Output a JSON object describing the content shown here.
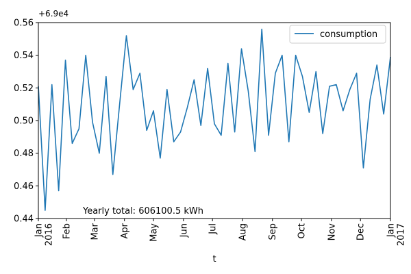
{
  "chart_data": {
    "type": "line",
    "xlabel": "t",
    "ylabel": "",
    "y_offset_label": "+6.9e4",
    "ylim": [
      0.44,
      0.56
    ],
    "xlim": [
      "2016-01-03",
      "2017-01-01"
    ],
    "yticks": [
      0.44,
      0.46,
      0.48,
      0.5,
      0.52,
      0.54,
      0.56
    ],
    "ytick_labels": [
      "0.44",
      "0.46",
      "0.48",
      "0.50",
      "0.52",
      "0.54",
      "0.56"
    ],
    "xticks": [
      {
        "date": "2016-01-03",
        "label": "Jan",
        "sublabel": "2016"
      },
      {
        "date": "2016-02-01",
        "label": "Feb",
        "sublabel": ""
      },
      {
        "date": "2016-03-01",
        "label": "Mar",
        "sublabel": ""
      },
      {
        "date": "2016-04-01",
        "label": "Apr",
        "sublabel": ""
      },
      {
        "date": "2016-05-01",
        "label": "May",
        "sublabel": ""
      },
      {
        "date": "2016-06-01",
        "label": "Jun",
        "sublabel": ""
      },
      {
        "date": "2016-07-01",
        "label": "Jul",
        "sublabel": ""
      },
      {
        "date": "2016-08-01",
        "label": "Aug",
        "sublabel": ""
      },
      {
        "date": "2016-09-01",
        "label": "Sep",
        "sublabel": ""
      },
      {
        "date": "2016-10-01",
        "label": "Oct",
        "sublabel": ""
      },
      {
        "date": "2016-11-01",
        "label": "Nov",
        "sublabel": ""
      },
      {
        "date": "2016-12-01",
        "label": "Dec",
        "sublabel": ""
      },
      {
        "date": "2017-01-01",
        "label": "Jan",
        "sublabel": "2017"
      }
    ],
    "legend_position": "top-right",
    "grid": false,
    "annotation": "Yearly total: 606100.5 kWh",
    "series": [
      {
        "name": "consumption",
        "color": "#1f77b4",
        "x": [
          "2016-01-03",
          "2016-01-10",
          "2016-01-17",
          "2016-01-24",
          "2016-01-31",
          "2016-02-07",
          "2016-02-14",
          "2016-02-21",
          "2016-02-28",
          "2016-03-06",
          "2016-03-13",
          "2016-03-20",
          "2016-03-27",
          "2016-04-03",
          "2016-04-10",
          "2016-04-17",
          "2016-04-24",
          "2016-05-01",
          "2016-05-08",
          "2016-05-15",
          "2016-05-22",
          "2016-05-29",
          "2016-06-05",
          "2016-06-12",
          "2016-06-19",
          "2016-06-26",
          "2016-07-03",
          "2016-07-10",
          "2016-07-17",
          "2016-07-24",
          "2016-07-31",
          "2016-08-07",
          "2016-08-14",
          "2016-08-21",
          "2016-08-28",
          "2016-09-04",
          "2016-09-11",
          "2016-09-18",
          "2016-09-25",
          "2016-10-02",
          "2016-10-09",
          "2016-10-16",
          "2016-10-23",
          "2016-10-30",
          "2016-11-06",
          "2016-11-13",
          "2016-11-20",
          "2016-11-27",
          "2016-12-04",
          "2016-12-11",
          "2016-12-18",
          "2016-12-25",
          "2017-01-01"
        ],
        "values": [
          69000.521,
          69000.445,
          69000.522,
          69000.457,
          69000.537,
          69000.486,
          69000.495,
          69000.54,
          69000.499,
          69000.48,
          69000.527,
          69000.467,
          69000.51,
          69000.552,
          69000.519,
          69000.529,
          69000.494,
          69000.506,
          69000.477,
          69000.519,
          69000.487,
          69000.493,
          69000.508,
          69000.525,
          69000.497,
          69000.532,
          69000.498,
          69000.491,
          69000.535,
          69000.493,
          69000.544,
          69000.518,
          69000.481,
          69000.556,
          69000.491,
          69000.529,
          69000.54,
          69000.487,
          69000.54,
          69000.527,
          69000.505,
          69000.53,
          69000.492,
          69000.521,
          69000.522,
          69000.506,
          69000.519,
          69000.529,
          69000.471,
          69000.513,
          69000.534,
          69000.504,
          69000.539
        ]
      }
    ]
  }
}
